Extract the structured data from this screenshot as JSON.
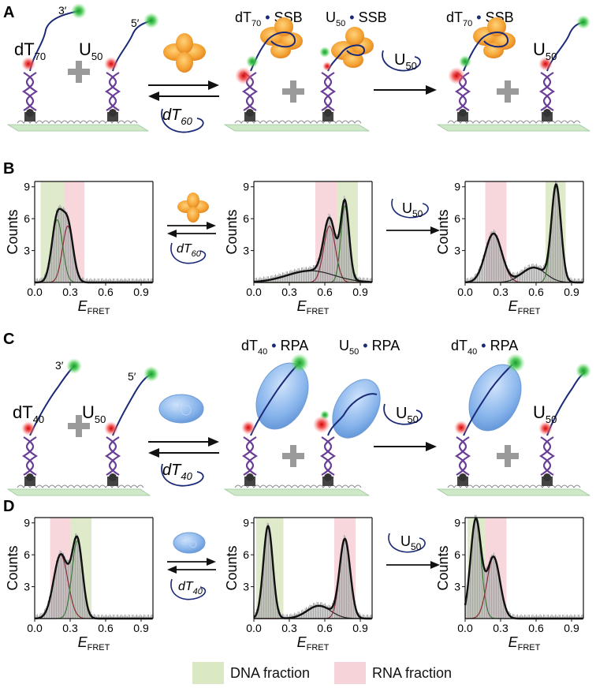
{
  "panels": {
    "A": "A",
    "B": "B",
    "C": "C",
    "D": "D"
  },
  "strands": {
    "dna_a": {
      "main": "dT",
      "sub": "70"
    },
    "rna": {
      "main": "U",
      "sub": "50"
    },
    "dna_c": {
      "main": "dT",
      "sub": "40"
    },
    "end3": "3′",
    "end5": "5′"
  },
  "competitors": {
    "ab": {
      "main": "dT",
      "sub": "60"
    },
    "cd": {
      "main": "dT",
      "sub": "40"
    },
    "chase": {
      "main": "U",
      "sub": "50"
    }
  },
  "complexes": {
    "ssb": "SSB",
    "rpa": "RPA"
  },
  "axes": {
    "xlabel_main": "E",
    "xlabel_sub": "FRET",
    "ylabel": "Counts",
    "xticks": [
      "0.0",
      "0.3",
      "0.6",
      "0.9"
    ],
    "yticks": [
      "3",
      "6",
      "9"
    ]
  },
  "legend": {
    "dna": "DNA fraction",
    "rna": "RNA fraction",
    "dna_color": "#dbe8c4",
    "rna_color": "#f6d3d8"
  },
  "chart_data": [
    {
      "type": "area",
      "panel": "B",
      "position": "left",
      "xlabel": "E_FRET",
      "ylabel": "Counts",
      "xlim": [
        0,
        1.0
      ],
      "ylim": [
        0,
        9.5
      ],
      "components": [
        {
          "fraction": "DNA",
          "mu": 0.19,
          "sigma": 0.045,
          "amp": 5.9
        },
        {
          "fraction": "RNA",
          "mu": 0.28,
          "sigma": 0.045,
          "amp": 5.3
        }
      ],
      "shaded": {
        "DNA": [
          0.05,
          0.25
        ],
        "RNA": [
          0.25,
          0.42
        ]
      }
    },
    {
      "type": "area",
      "panel": "B",
      "position": "middle",
      "xlabel": "E_FRET",
      "ylabel": "Counts",
      "xlim": [
        0,
        1.0
      ],
      "ylim": [
        0,
        9.5
      ],
      "components": [
        {
          "fraction": "RNA",
          "mu": 0.64,
          "sigma": 0.05,
          "amp": 5.3
        },
        {
          "fraction": "DNA",
          "mu": 0.77,
          "sigma": 0.035,
          "amp": 7.2
        },
        {
          "fraction": "broad",
          "mu": 0.48,
          "sigma": 0.2,
          "amp": 1.1
        }
      ],
      "shaded": {
        "RNA": [
          0.52,
          0.7
        ],
        "DNA": [
          0.7,
          0.88
        ]
      }
    },
    {
      "type": "area",
      "panel": "B",
      "position": "right",
      "xlabel": "E_FRET",
      "ylabel": "Counts",
      "xlim": [
        0,
        1.0
      ],
      "ylim": [
        0,
        9.5
      ],
      "components": [
        {
          "fraction": "RNA",
          "mu": 0.24,
          "sigma": 0.07,
          "amp": 4.6
        },
        {
          "fraction": "broad",
          "mu": 0.58,
          "sigma": 0.1,
          "amp": 1.4
        },
        {
          "fraction": "DNA",
          "mu": 0.77,
          "sigma": 0.04,
          "amp": 9.0
        }
      ],
      "shaded": {
        "RNA": [
          0.17,
          0.35
        ],
        "DNA": [
          0.68,
          0.85
        ]
      }
    },
    {
      "type": "area",
      "panel": "D",
      "position": "left",
      "xlabel": "E_FRET",
      "ylabel": "Counts",
      "xlim": [
        0,
        1.0
      ],
      "ylim": [
        0,
        9.5
      ],
      "components": [
        {
          "fraction": "RNA",
          "mu": 0.22,
          "sigma": 0.06,
          "amp": 6.0
        },
        {
          "fraction": "DNA",
          "mu": 0.36,
          "sigma": 0.045,
          "amp": 7.3
        }
      ],
      "shaded": {
        "RNA": [
          0.13,
          0.3
        ],
        "DNA": [
          0.3,
          0.48
        ]
      }
    },
    {
      "type": "area",
      "panel": "D",
      "position": "middle",
      "xlabel": "E_FRET",
      "ylabel": "Counts",
      "xlim": [
        0,
        1.0
      ],
      "ylim": [
        0,
        9.5
      ],
      "components": [
        {
          "fraction": "DNA",
          "mu": 0.12,
          "sigma": 0.04,
          "amp": 8.7
        },
        {
          "fraction": "broad",
          "mu": 0.55,
          "sigma": 0.1,
          "amp": 1.2
        },
        {
          "fraction": "RNA",
          "mu": 0.77,
          "sigma": 0.045,
          "amp": 7.4
        }
      ],
      "shaded": {
        "DNA": [
          0.02,
          0.25
        ],
        "RNA": [
          0.68,
          0.86
        ]
      }
    },
    {
      "type": "area",
      "panel": "D",
      "position": "right",
      "xlabel": "E_FRET",
      "ylabel": "Counts",
      "xlim": [
        0,
        1.0
      ],
      "ylim": [
        0,
        9.5
      ],
      "components": [
        {
          "fraction": "DNA",
          "mu": 0.09,
          "sigma": 0.045,
          "amp": 9.3
        },
        {
          "fraction": "RNA",
          "mu": 0.24,
          "sigma": 0.055,
          "amp": 5.8
        }
      ],
      "shaded": {
        "DNA": [
          0.02,
          0.17
        ],
        "RNA": [
          0.17,
          0.35
        ]
      }
    }
  ]
}
